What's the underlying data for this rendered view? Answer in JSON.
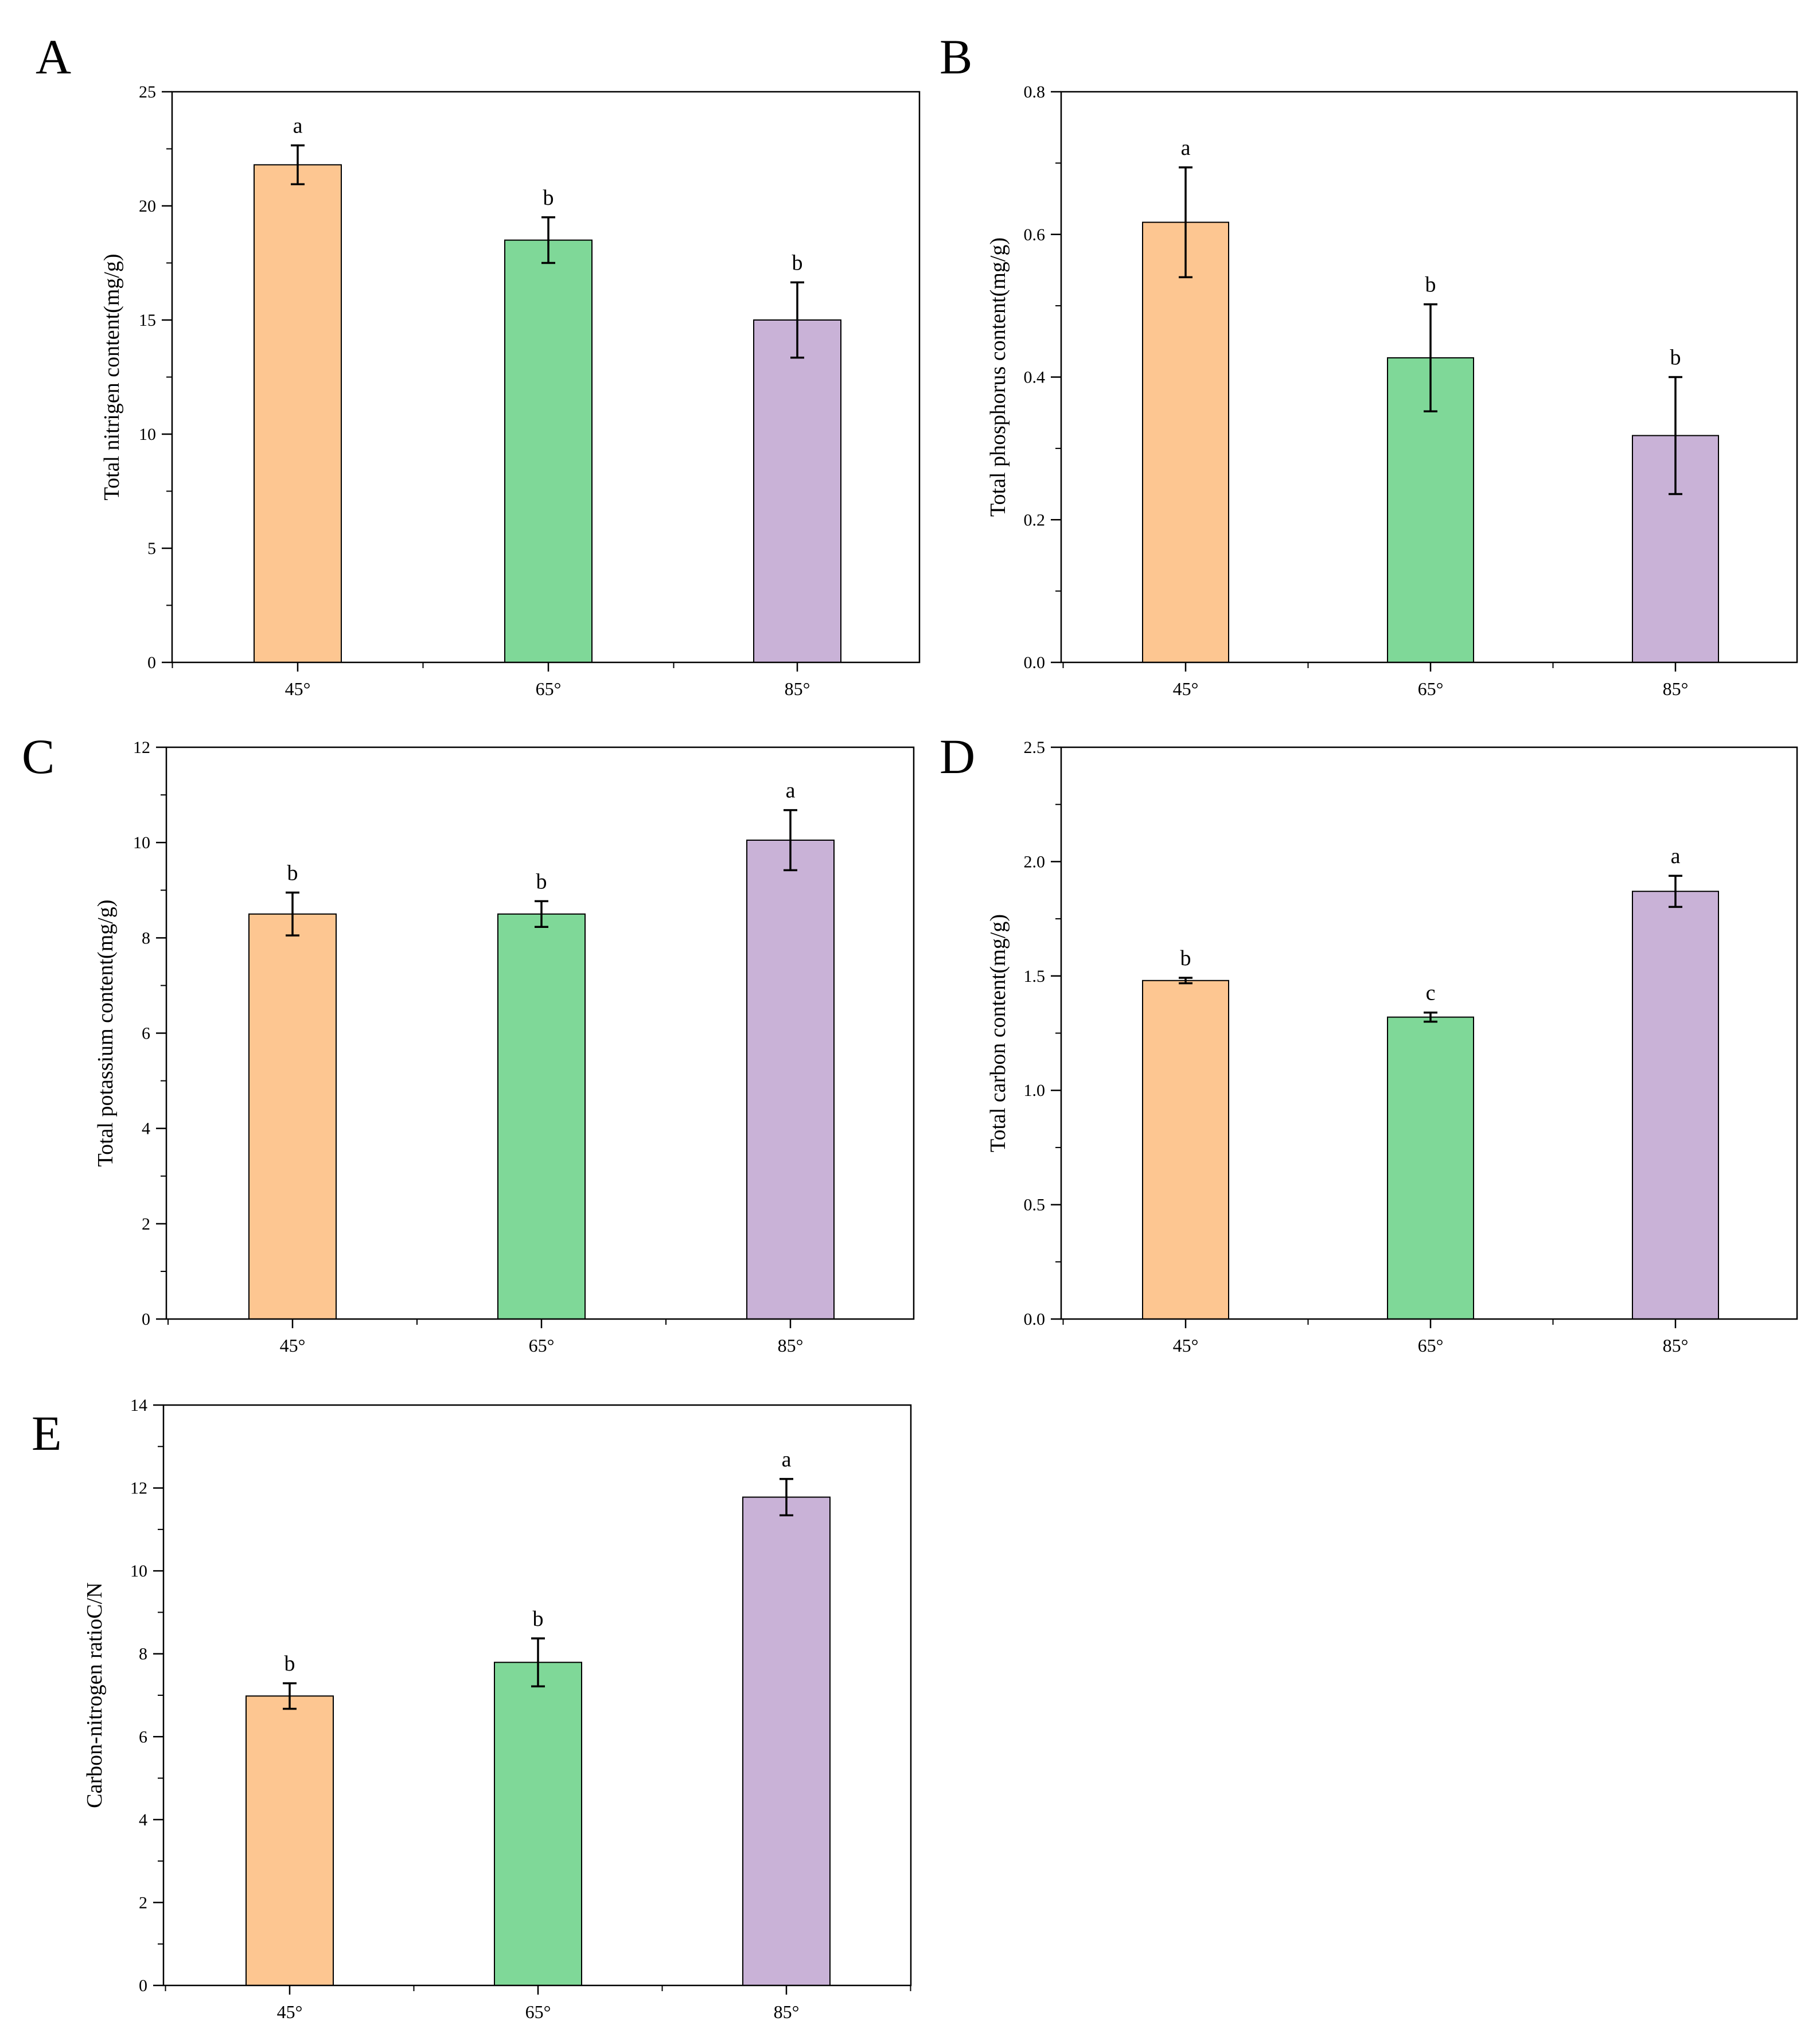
{
  "chart_data": [
    {
      "panel": "A",
      "type": "bar",
      "categories": [
        "45°",
        "65°",
        "85°"
      ],
      "values": [
        21.8,
        18.5,
        15.0
      ],
      "errors": [
        0.85,
        1.0,
        1.65
      ],
      "significance": [
        "a",
        "b",
        "b"
      ],
      "colors": [
        "#fdc691",
        "#7fd898",
        "#c9b2d7"
      ],
      "ylabel": "Total nitrigen content(mg/g)",
      "ylim": [
        0,
        25
      ],
      "yticks": [
        "0",
        "5",
        "10",
        "15",
        "20",
        "25"
      ],
      "grid": false
    },
    {
      "panel": "B",
      "type": "bar",
      "categories": [
        "45°",
        "65°",
        "85°"
      ],
      "values": [
        0.617,
        0.427,
        0.318
      ],
      "errors": [
        0.077,
        0.075,
        0.082
      ],
      "significance": [
        "a",
        "b",
        "b"
      ],
      "colors": [
        "#fdc691",
        "#7fd898",
        "#c9b2d7"
      ],
      "ylabel": "Total phosphorus content(mg/g)",
      "ylim": [
        0,
        0.8
      ],
      "yticks": [
        "0.0",
        "0.2",
        "0.4",
        "0.6",
        "0.8"
      ],
      "grid": false
    },
    {
      "panel": "C",
      "type": "bar",
      "categories": [
        "45°",
        "65°",
        "85°"
      ],
      "values": [
        8.5,
        8.5,
        10.05
      ],
      "errors": [
        0.45,
        0.27,
        0.63
      ],
      "significance": [
        "b",
        "b",
        "a"
      ],
      "colors": [
        "#fdc691",
        "#7fd898",
        "#c9b2d7"
      ],
      "ylabel": "Total potassium content(mg/g)",
      "ylim": [
        0,
        12
      ],
      "yticks": [
        "0",
        "2",
        "4",
        "6",
        "8",
        "10",
        "12"
      ],
      "grid": false
    },
    {
      "panel": "D",
      "type": "bar",
      "categories": [
        "45°",
        "65°",
        "85°"
      ],
      "values": [
        1.48,
        1.32,
        1.87
      ],
      "errors": [
        0.012,
        0.02,
        0.068
      ],
      "significance": [
        "b",
        "c",
        "a"
      ],
      "colors": [
        "#fdc691",
        "#7fd898",
        "#c9b2d7"
      ],
      "ylabel": "Total carbon content(mg/g)",
      "ylim": [
        0,
        2.5
      ],
      "yticks": [
        "0.0",
        "0.5",
        "1.0",
        "1.5",
        "2.0",
        "2.5"
      ],
      "grid": false
    },
    {
      "panel": "E",
      "type": "bar",
      "categories": [
        "45°",
        "65°",
        "85°"
      ],
      "values": [
        7.48,
        8.35,
        12.62
      ],
      "errors": [
        0.33,
        0.62,
        0.47
      ],
      "significance": [
        "b",
        "b",
        "a"
      ],
      "colors": [
        "#fdc691",
        "#7fd898",
        "#c9b2d7"
      ],
      "ylabel": "Carbon-nitrogen ratioC/N",
      "ylim": [
        0,
        15
      ],
      "yticks": [
        "0",
        "2",
        "4",
        "6",
        "8",
        "10",
        "12",
        "14"
      ],
      "grid": false
    }
  ]
}
